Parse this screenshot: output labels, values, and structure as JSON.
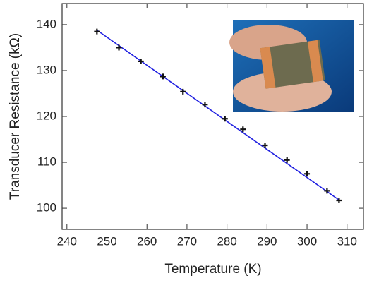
{
  "chart_data": {
    "type": "scatter",
    "xlabel": "Temperature (K)",
    "ylabel": "Transducer Resistance (kΩ)",
    "series": [
      {
        "color": "#111111",
        "x": [
          247.5,
          253,
          258.5,
          264,
          269,
          274.5,
          279.5,
          284,
          289.5,
          295,
          300,
          305,
          308
        ],
        "values": [
          138.5,
          135,
          132,
          128.7,
          125.4,
          122.6,
          119.5,
          117.2,
          113.7,
          110.5,
          107.5,
          103.8,
          101.7
        ]
      }
    ],
    "fit": {
      "color": "#2020e0",
      "x": [
        247.5,
        308
      ],
      "values": [
        138.8,
        101.8
      ]
    },
    "xlim": [
      238.8,
      314.1
    ],
    "xticks": [
      240,
      250,
      260,
      270,
      280,
      290,
      300,
      310
    ],
    "ylim": [
      95.4,
      144.6
    ],
    "yticks": [
      100,
      110,
      120,
      130,
      140
    ]
  }
}
